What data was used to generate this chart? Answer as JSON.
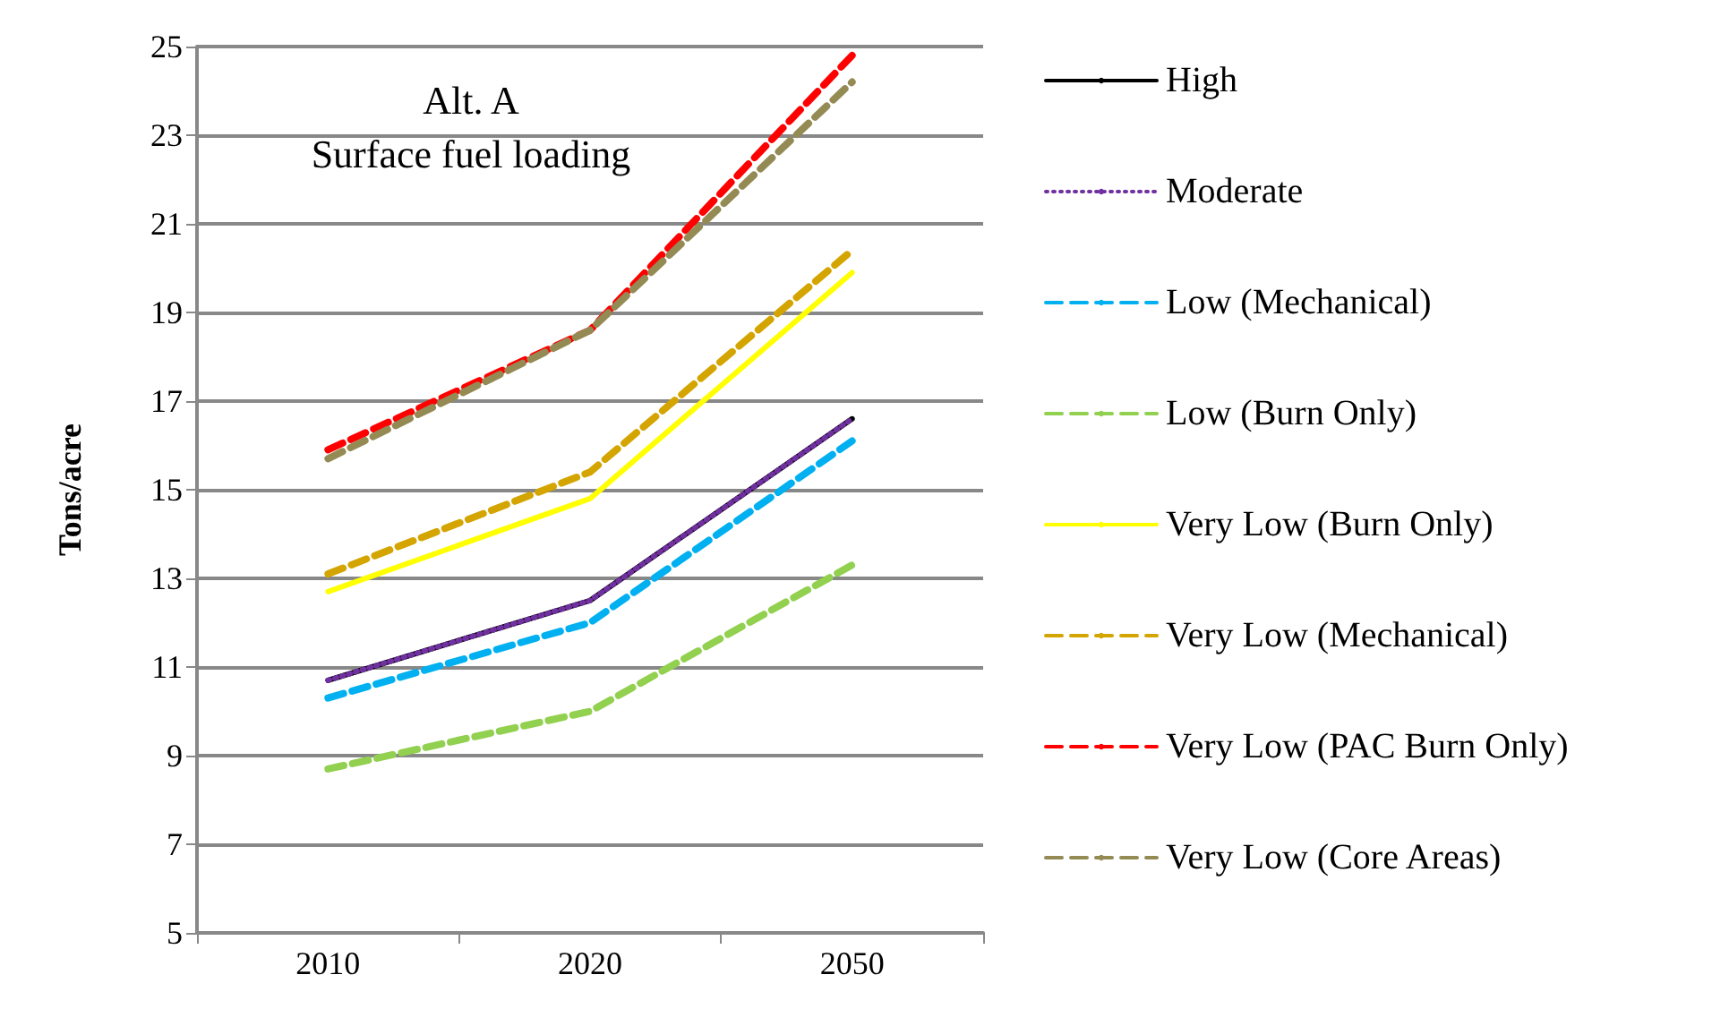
{
  "chart_data": {
    "type": "line",
    "title": "Alt. A",
    "subtitle": "Surface fuel loading",
    "ylabel": "Tons/acre",
    "categories": [
      "2010",
      "2020",
      "2050"
    ],
    "ylim": [
      5,
      25
    ],
    "yticks": [
      5,
      7,
      9,
      11,
      13,
      15,
      17,
      19,
      21,
      23,
      25
    ],
    "grid": "y",
    "legend": "right",
    "marker": "none",
    "series": [
      {
        "name": "High",
        "color": "#000000",
        "line_style": "solid",
        "values": [
          10.7,
          12.5,
          16.6
        ]
      },
      {
        "name": "Moderate",
        "color": "#7030a0",
        "line_style": "dotted",
        "values": [
          10.7,
          12.5,
          16.6
        ]
      },
      {
        "name": "Low (Mechanical)",
        "color": "#00b0f0",
        "line_style": "dashed",
        "values": [
          10.3,
          12.0,
          16.1
        ]
      },
      {
        "name": "Low (Burn Only)",
        "color": "#92d050",
        "line_style": "dashed",
        "values": [
          8.7,
          10.0,
          13.3
        ]
      },
      {
        "name": "Very Low (Burn Only)",
        "color": "#ffff00",
        "line_style": "solid",
        "values": [
          12.7,
          14.8,
          19.9
        ]
      },
      {
        "name": "Very Low (Mechanical)",
        "color": "#d4a500",
        "line_style": "dashed",
        "values": [
          13.1,
          15.4,
          20.4
        ]
      },
      {
        "name": "Very Low (PAC Burn Only)",
        "color": "#ff0000",
        "line_style": "dashed",
        "values": [
          15.9,
          18.6,
          24.8
        ]
      },
      {
        "name": "Very Low (Core Areas)",
        "color": "#948a54",
        "line_style": "dashed",
        "values": [
          15.7,
          18.6,
          24.2
        ]
      }
    ]
  }
}
